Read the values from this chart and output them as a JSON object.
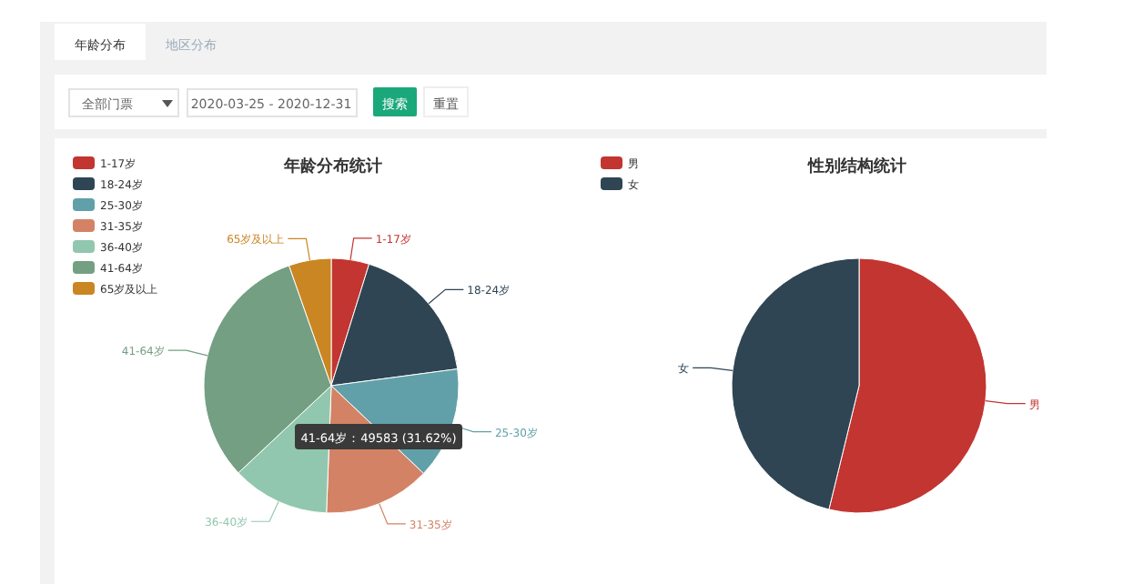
{
  "chart_data": [
    {
      "type": "other",
      "annotations": [
        "年龄分布",
        "地区分布",
        "全部门票",
        "2020-03-25 - 2020-12-31",
        "搜索",
        "重置"
      ]
    },
    {
      "type": "pie",
      "title": "年龄分布统计",
      "categories": [
        "1-17岁",
        "18-24岁",
        "25-30岁",
        "31-35岁",
        "36-40岁",
        "41-64岁",
        "65岁及以上"
      ],
      "values": [
        4.8,
        18.1,
        14.2,
        13.5,
        12.4,
        31.62,
        5.38
      ],
      "colors": [
        "#c23531",
        "#2f4554",
        "#61a0a8",
        "#d48265",
        "#91c7ae",
        "#749f83",
        "#ca8622"
      ],
      "legend": "top left",
      "annotations": [
        "41-64岁：49583 (31.62%)"
      ]
    },
    {
      "type": "pie",
      "title": "性别结构统计",
      "categories": [
        "男",
        "女"
      ],
      "values": [
        53.8,
        46.2
      ],
      "colors": [
        "#c23531",
        "#2f4554"
      ],
      "legend": "top left"
    }
  ]
}
